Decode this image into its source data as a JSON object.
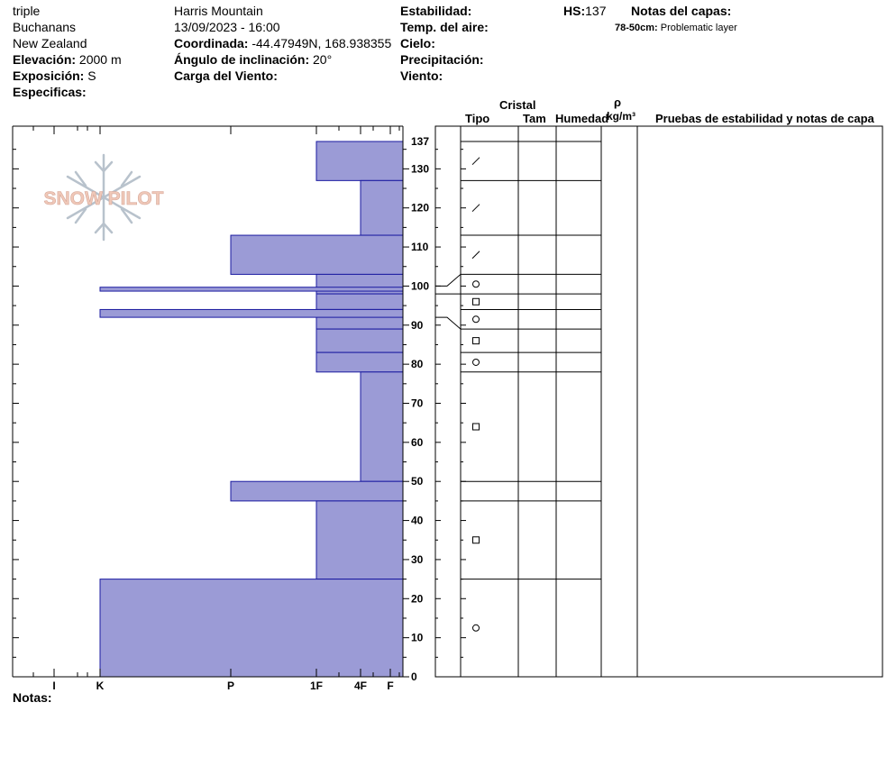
{
  "header": {
    "observer": "triple",
    "range": "Buchanans",
    "country": "New Zealand",
    "elevation_label": "Elevación:",
    "elevation_value": "2000 m",
    "aspect_label": "Exposición:",
    "aspect_value": "S",
    "specifics_label": "Especificas:",
    "location": "Harris Mountain",
    "datetime": "13/09/2023 - 16:00",
    "coord_label": "Coordinada:",
    "coord_value": "-44.47949N, 168.938355",
    "slope_label": "Ángulo de inclinación:",
    "slope_value": "20°",
    "wind_loading_label": "Carga del Viento:",
    "stability_label": "Estabilidad:",
    "air_temp_label": "Temp. del aire:",
    "sky_label": "Cielo:",
    "precip_label": "Precipitación:",
    "wind_label": "Viento:",
    "hs_label": "HS:",
    "hs_value": "137",
    "layer_notes_label": "Notas del capas:",
    "layer_note_depth": "78-50cm:",
    "layer_note_text": "Problematic layer"
  },
  "columns": {
    "cristal": "Cristal",
    "tipo": "Tipo",
    "tam": "Tam",
    "humedad": "Humedad",
    "rho": "ρ",
    "density_unit": "kg/m³",
    "tests": "Pruebas de estabilidad y notas de capa"
  },
  "logo_text": "SNOW PILOT",
  "notes_label": "Notas:",
  "colors": {
    "bar_fill": "#9b9bd6",
    "bar_stroke": "#1a1aa0"
  },
  "chart_data": {
    "type": "bar",
    "title": "",
    "ylabel": "",
    "ylim": [
      0,
      137
    ],
    "yticks": [
      0,
      10,
      20,
      30,
      40,
      50,
      60,
      70,
      80,
      90,
      100,
      110,
      120,
      130,
      137
    ],
    "hardness_scale": [
      "I",
      "K",
      "P",
      "1F",
      "4F",
      "F"
    ],
    "hardness_ticks": [
      {
        "label": "I",
        "value": 1
      },
      {
        "label": "K",
        "value": 2
      },
      {
        "label": "P",
        "value": 3
      },
      {
        "label": "1F",
        "value": 4
      },
      {
        "label": "4F",
        "value": 5
      },
      {
        "label": "F",
        "value": 6
      }
    ],
    "layers": [
      {
        "bottom": 127,
        "top": 137,
        "hardness": 4,
        "crystal": "slash"
      },
      {
        "bottom": 113,
        "top": 127,
        "hardness": 5,
        "crystal": "slash"
      },
      {
        "bottom": 103,
        "top": 113,
        "hardness": 3,
        "crystal": "slash"
      },
      {
        "bottom": 98,
        "top": 103,
        "hardness": 4,
        "crystal": "circle"
      },
      {
        "bottom": 94,
        "top": 98,
        "hardness": 4,
        "crystal": "square"
      },
      {
        "bottom": 89,
        "top": 94,
        "hardness": 4,
        "crystal": "circle"
      },
      {
        "bottom": 83,
        "top": 89,
        "hardness": 4,
        "crystal": "square"
      },
      {
        "bottom": 78,
        "top": 83,
        "hardness": 4,
        "crystal": "circle"
      },
      {
        "bottom": 50,
        "top": 78,
        "hardness": 5,
        "crystal": "square"
      },
      {
        "bottom": 45,
        "top": 50,
        "hardness": 3,
        "crystal": null
      },
      {
        "bottom": 25,
        "top": 45,
        "hardness": 4,
        "crystal": "square"
      },
      {
        "bottom": 0,
        "top": 25,
        "hardness": 2,
        "crystal": "circle"
      }
    ],
    "thin_layers": [
      {
        "bottom": 98.7,
        "top": 99.7,
        "hardness": 2
      },
      {
        "bottom": 92.0,
        "top": 94.0,
        "hardness": 2
      }
    ]
  }
}
